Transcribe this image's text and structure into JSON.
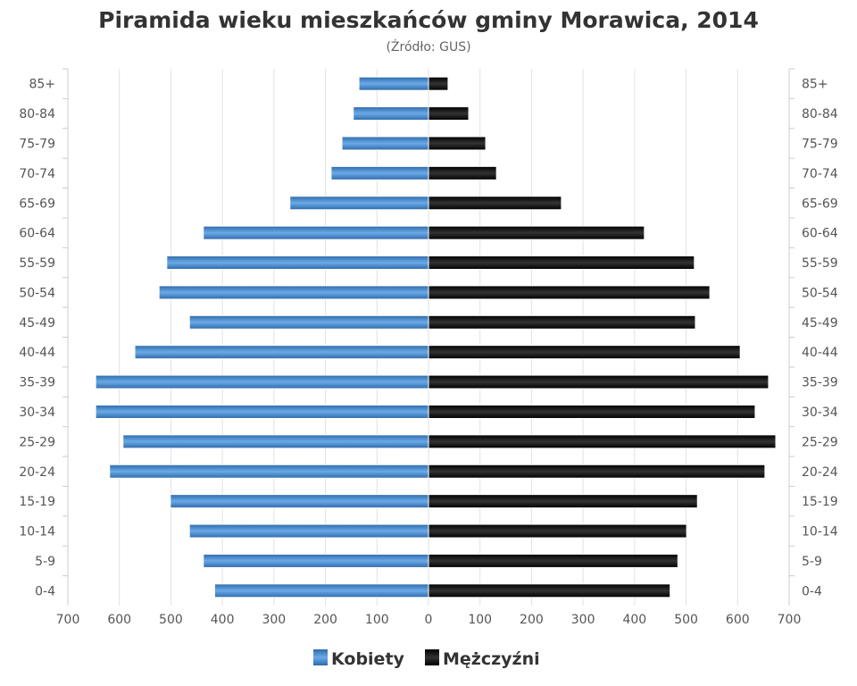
{
  "chart_data": {
    "type": "bar",
    "orientation": "horizontal-population-pyramid",
    "title": "Piramida wieku mieszkańców gminy Morawica, 2014",
    "subtitle": "(Źródło: GUS)",
    "categories": [
      "85+",
      "80-84",
      "75-79",
      "70-74",
      "65-69",
      "60-64",
      "55-59",
      "50-54",
      "45-49",
      "40-44",
      "35-39",
      "30-34",
      "25-29",
      "20-24",
      "15-19",
      "10-14",
      "5-9",
      "0-4"
    ],
    "series": [
      {
        "name": "Kobiety",
        "color": "#4a8ad0",
        "side": "left",
        "values": [
          135,
          146,
          168,
          189,
          269,
          437,
          508,
          523,
          464,
          570,
          646,
          646,
          593,
          619,
          501,
          464,
          437,
          415
        ]
      },
      {
        "name": "Mężczyźni",
        "color": "#1a1a1a",
        "side": "right",
        "values": [
          38,
          78,
          111,
          132,
          258,
          419,
          516,
          546,
          518,
          605,
          660,
          634,
          674,
          653,
          522,
          501,
          484,
          469
        ]
      }
    ],
    "xticks": [
      700,
      600,
      500,
      400,
      300,
      200,
      100,
      0,
      100,
      200,
      300,
      400,
      500,
      600,
      700
    ],
    "xlim": [
      -700,
      700
    ],
    "grid": true,
    "legend": "bottom"
  }
}
